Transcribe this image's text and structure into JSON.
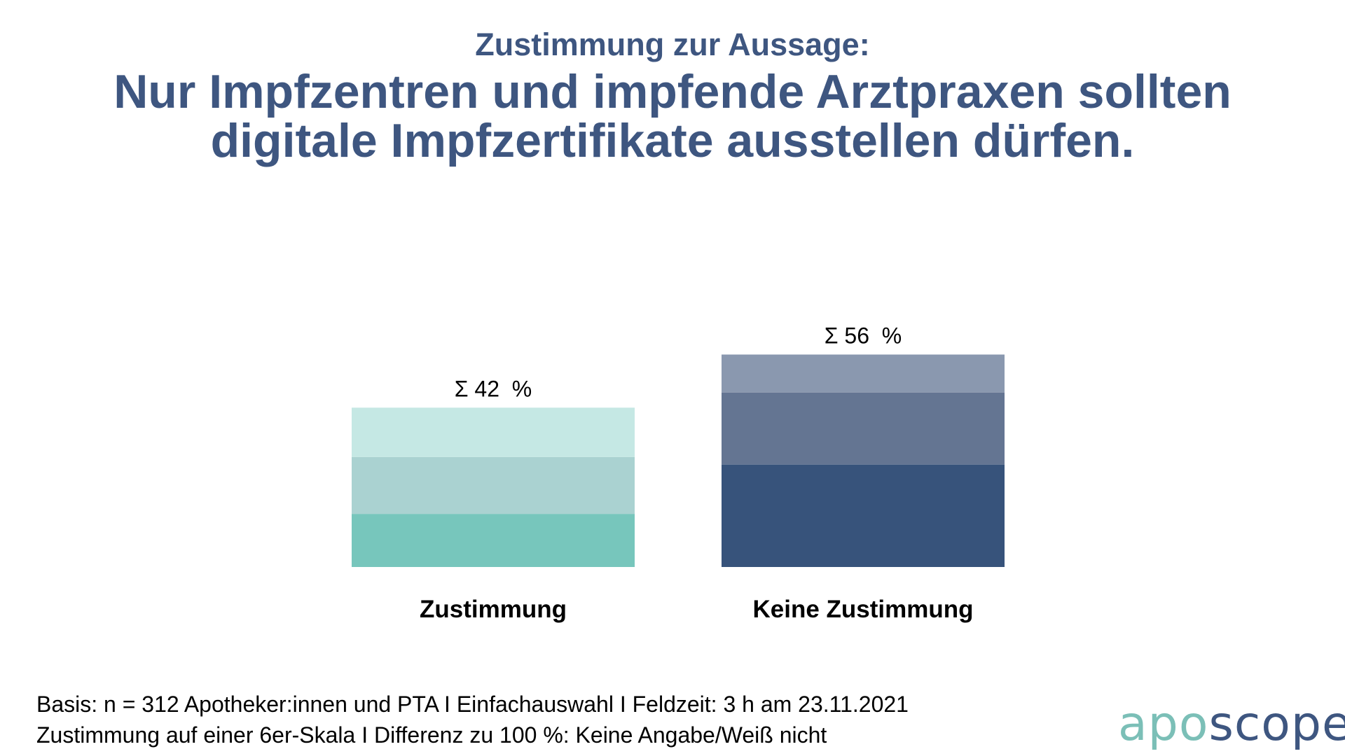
{
  "header": {
    "subtitle": "Zustimmung zur Aussage:",
    "title_line1": "Nur Impfzentren und impfende Arztpraxen sollten",
    "title_line2": "digitale Impfzertifikate ausstellen dürfen."
  },
  "chart_data": {
    "type": "bar",
    "stacked": true,
    "title": "Nur Impfzentren und impfende Arztpraxen sollten digitale Impfzertifikate ausstellen dürfen.",
    "categories": [
      "Zustimmung",
      "Keine Zustimmung"
    ],
    "totals": [
      42,
      56
    ],
    "total_labels": [
      "Σ 42  %",
      "Σ 56  %"
    ],
    "segments": [
      {
        "category": "Zustimmung",
        "values_bottom_to_top": [
          14,
          15,
          13
        ],
        "colors_bottom_to_top": [
          "#77c6bc",
          "#aad2d1",
          "#c5e8e4"
        ]
      },
      {
        "category": "Keine Zustimmung",
        "values_bottom_to_top": [
          27,
          19,
          10
        ],
        "colors_bottom_to_top": [
          "#37537b",
          "#647592",
          "#8a98af"
        ]
      }
    ],
    "ylim": [
      0,
      60
    ],
    "xlabel": "",
    "ylabel": "",
    "grid": false,
    "legend": "none",
    "unit": "%"
  },
  "footer": {
    "line1": "Basis: n = 312 Apotheker:innen und PTA I Einfachauswahl I Feldzeit: 3 h am 23.11.2021",
    "line2": "Zustimmung auf einer 6er-Skala I Differenz zu 100 %: Keine Angabe/Weiß nicht"
  },
  "logo": {
    "part1": "apo",
    "part2": "scope",
    "color1": "#7bbfb7",
    "color2": "#3e5680"
  }
}
